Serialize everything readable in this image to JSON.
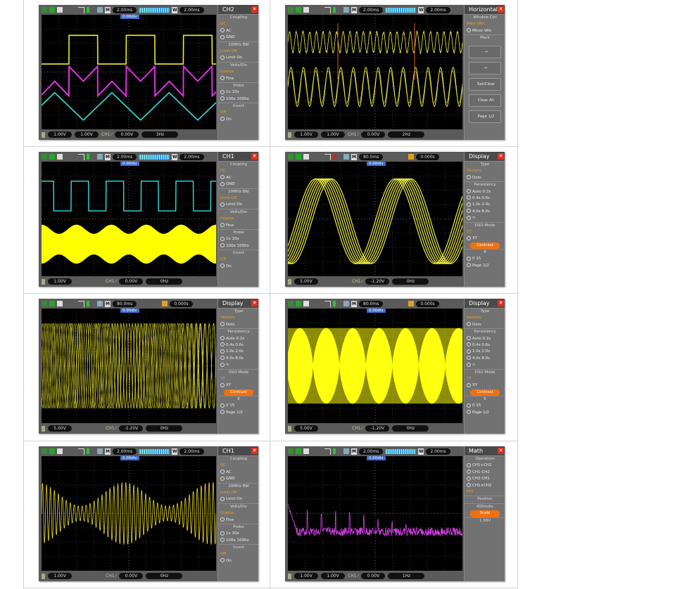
{
  "panels": [
    {
      "menu_title": "CH2",
      "top": {
        "main": "2.00ms",
        "window": "2.00ms",
        "mode": "W"
      },
      "trigger_tag": "0.00div",
      "bottom": [
        "1.00V",
        "1.00V",
        "0.00V",
        "3Hz"
      ],
      "traces": [
        {
          "kind": "square",
          "color": "#f0f020"
        },
        {
          "kind": "trapezoid",
          "color": "#e030e0"
        },
        {
          "kind": "triangle",
          "color": "#30e0e0"
        }
      ],
      "menu": [
        {
          "t": "Coupling",
          "k": "head"
        },
        {
          "t": "DC",
          "k": "sel"
        },
        {
          "t": "AC",
          "k": "opt"
        },
        {
          "t": "GND",
          "k": "opt"
        },
        {
          "t": "20MHz BW",
          "k": "head"
        },
        {
          "t": "Limit Off",
          "k": "sel"
        },
        {
          "t": "Limit On",
          "k": "opt"
        },
        {
          "t": "Volts/Div",
          "k": "head"
        },
        {
          "t": "Coarse",
          "k": "sel"
        },
        {
          "t": "Fine",
          "k": "opt"
        },
        {
          "t": "Probe",
          "k": "head"
        },
        {
          "t": "1x   10x",
          "k": "opt"
        },
        {
          "t": "100x 1000x",
          "k": "opt"
        },
        {
          "t": "Invert",
          "k": "head"
        },
        {
          "t": "Off",
          "k": "sel"
        },
        {
          "t": "On",
          "k": "opt"
        }
      ]
    },
    {
      "menu_title": "Horizontal",
      "top": {
        "main": "2.00ms",
        "window": "2.00ms",
        "mode": "W"
      },
      "trigger_tag": "",
      "bottom": [
        "1.00V",
        "1.00V",
        "0.00V",
        "2Hz"
      ],
      "traces": [
        {
          "kind": "sine-fast",
          "color": "#e8e840"
        },
        {
          "kind": "sine",
          "color": "#e8e840"
        }
      ],
      "menu": [
        {
          "t": "Window Ctrl",
          "k": "head"
        },
        {
          "t": "Main Win",
          "k": "sel"
        },
        {
          "t": "Minor Win",
          "k": "opt"
        },
        {
          "t": "Mark",
          "k": "head"
        },
        {
          "t": "→",
          "k": "btn"
        },
        {
          "t": "←",
          "k": "btn"
        },
        {
          "t": "Set/Clear",
          "k": "btn"
        },
        {
          "t": "Clear All",
          "k": "btn"
        },
        {
          "t": "Page 1/2",
          "k": "btn"
        }
      ]
    },
    {
      "menu_title": "CH1",
      "top": {
        "main": "2.00ms",
        "window": "2.00ms",
        "mode": "W"
      },
      "trigger_tag": "0.00div",
      "bottom": [
        "1.00V",
        "",
        "0.00V",
        "0Hz"
      ],
      "traces": [
        {
          "kind": "square",
          "color": "#30e0e0"
        },
        {
          "kind": "am-band",
          "color": "#ffff00"
        }
      ],
      "menu": [
        {
          "t": "Coupling",
          "k": "head"
        },
        {
          "t": "DC",
          "k": "sel"
        },
        {
          "t": "AC",
          "k": "opt"
        },
        {
          "t": "GND",
          "k": "opt"
        },
        {
          "t": "20MHz BW",
          "k": "head"
        },
        {
          "t": "Limit Off",
          "k": "sel"
        },
        {
          "t": "Limit On",
          "k": "opt"
        },
        {
          "t": "Volts/Div",
          "k": "head"
        },
        {
          "t": "Coarse",
          "k": "sel"
        },
        {
          "t": "Fine",
          "k": "opt"
        },
        {
          "t": "Probe",
          "k": "head"
        },
        {
          "t": "1x   10x",
          "k": "opt"
        },
        {
          "t": "100x 1000x",
          "k": "opt"
        },
        {
          "t": "Invert",
          "k": "head"
        },
        {
          "t": "Off",
          "k": "sel"
        },
        {
          "t": "On",
          "k": "opt"
        }
      ]
    },
    {
      "menu_title": "Display",
      "top": {
        "main": "80.0ms",
        "window": "0.000s",
        "mode": "T"
      },
      "trigger_tag": "0.00div",
      "bottom": [
        "5.00V",
        "",
        "-1.20V",
        "0Hz"
      ],
      "traces": [
        {
          "kind": "persistence-sine",
          "color": "#f0f040"
        }
      ],
      "menu": [
        {
          "t": "Type",
          "k": "head"
        },
        {
          "t": "Vectors",
          "k": "sel"
        },
        {
          "t": "Dots",
          "k": "opt"
        },
        {
          "t": "Persistency",
          "k": "head"
        },
        {
          "t": "Auto  0.2s",
          "k": "opt"
        },
        {
          "t": "0.4s  0.6s",
          "k": "opt"
        },
        {
          "t": "1.0s  2.0s",
          "k": "opt"
        },
        {
          "t": "4.0s  8.0s",
          "k": "opt"
        },
        {
          "t": "∞",
          "k": "opt"
        },
        {
          "t": "DSO Mode",
          "k": "head"
        },
        {
          "t": "YT",
          "k": "sel"
        },
        {
          "t": "XY",
          "k": "opt"
        },
        {
          "t": "Contrast",
          "k": "hl"
        },
        {
          "t": "8",
          "k": "head"
        },
        {
          "t": "0          15",
          "k": "opt"
        },
        {
          "t": "Page 1/2",
          "k": "opt"
        }
      ]
    },
    {
      "menu_title": "Display",
      "top": {
        "main": "80.0ms",
        "window": "0.000s",
        "mode": "T"
      },
      "trigger_tag": "0.00div",
      "bottom": [
        "5.00V",
        "",
        "-1.20V",
        "0Hz"
      ],
      "traces": [
        {
          "kind": "dense-sine",
          "color": "#d8d030"
        }
      ],
      "menu": [
        {
          "t": "Type",
          "k": "head"
        },
        {
          "t": "Vectors",
          "k": "sel"
        },
        {
          "t": "Dots",
          "k": "opt"
        },
        {
          "t": "Persistency",
          "k": "head"
        },
        {
          "t": "Auto  0.2s",
          "k": "opt"
        },
        {
          "t": "0.4s  0.6s",
          "k": "opt"
        },
        {
          "t": "1.0s  2.0s",
          "k": "opt"
        },
        {
          "t": "4.0s  8.0s",
          "k": "opt"
        },
        {
          "t": "∞",
          "k": "opt"
        },
        {
          "t": "DSO Mode",
          "k": "head"
        },
        {
          "t": "YT",
          "k": "sel"
        },
        {
          "t": "XY",
          "k": "opt"
        },
        {
          "t": "Contrast",
          "k": "hl"
        },
        {
          "t": "8",
          "k": "head"
        },
        {
          "t": "0          15",
          "k": "opt"
        },
        {
          "t": "Page 1/2",
          "k": "opt"
        }
      ]
    },
    {
      "menu_title": "Display",
      "top": {
        "main": "80.0ms",
        "window": "0.000s",
        "mode": "T"
      },
      "trigger_tag": "0.00div",
      "bottom": [
        "5.00V",
        "",
        "-1.20V",
        "0Hz"
      ],
      "traces": [
        {
          "kind": "am-lobes",
          "color": "#ffff10"
        }
      ],
      "menu": [
        {
          "t": "Type",
          "k": "head"
        },
        {
          "t": "Vectors",
          "k": "sel"
        },
        {
          "t": "Dots",
          "k": "opt"
        },
        {
          "t": "Persistency",
          "k": "head"
        },
        {
          "t": "Auto  0.2s",
          "k": "opt"
        },
        {
          "t": "0.4s  0.6s",
          "k": "opt"
        },
        {
          "t": "1.0s  2.0s",
          "k": "opt"
        },
        {
          "t": "4.0s  8.0s",
          "k": "opt"
        },
        {
          "t": "∞",
          "k": "opt"
        },
        {
          "t": "DSO Mode",
          "k": "head"
        },
        {
          "t": "YT",
          "k": "sel"
        },
        {
          "t": "XY",
          "k": "opt"
        },
        {
          "t": "Contrast",
          "k": "hl"
        },
        {
          "t": "8",
          "k": "head"
        },
        {
          "t": "0          15",
          "k": "opt"
        },
        {
          "t": "Page 1/2",
          "k": "opt"
        }
      ]
    },
    {
      "menu_title": "CH1",
      "top": {
        "main": "2.00ms",
        "window": "2.00ms",
        "mode": "W"
      },
      "trigger_tag": "0.00div",
      "bottom": [
        "1.00V",
        "",
        "0.00V",
        "0Hz"
      ],
      "traces": [
        {
          "kind": "am-sine",
          "color": "#f0e020"
        }
      ],
      "menu": [
        {
          "t": "Coupling",
          "k": "head"
        },
        {
          "t": "DC",
          "k": "sel"
        },
        {
          "t": "AC",
          "k": "opt"
        },
        {
          "t": "GND",
          "k": "opt"
        },
        {
          "t": "20MHz BW",
          "k": "head"
        },
        {
          "t": "Limit Off",
          "k": "sel"
        },
        {
          "t": "Limit On",
          "k": "opt"
        },
        {
          "t": "Volts/Div",
          "k": "head"
        },
        {
          "t": "Coarse",
          "k": "sel"
        },
        {
          "t": "Fine",
          "k": "opt"
        },
        {
          "t": "Probe",
          "k": "head"
        },
        {
          "t": "1x   10x",
          "k": "opt"
        },
        {
          "t": "100x 1000x",
          "k": "opt"
        },
        {
          "t": "Invert",
          "k": "head"
        },
        {
          "t": "Off",
          "k": "sel"
        },
        {
          "t": "On",
          "k": "opt"
        }
      ]
    },
    {
      "menu_title": "Math",
      "top": {
        "main": "2.00ms",
        "window": "2.00ms",
        "mode": "W"
      },
      "trigger_tag": "0.00div",
      "bottom": [
        "1.00V",
        "1.00V",
        "0.00V",
        "1Hz"
      ],
      "traces": [
        {
          "kind": "fft",
          "color": "#d040e0"
        }
      ],
      "menu": [
        {
          "t": "Operation",
          "k": "head"
        },
        {
          "t": "CH1+CH2",
          "k": "opt"
        },
        {
          "t": "CH1-CH2",
          "k": "opt"
        },
        {
          "t": "CH2-CH1",
          "k": "opt"
        },
        {
          "t": "CH1×CH2",
          "k": "opt"
        },
        {
          "t": "FFT",
          "k": "sel"
        },
        {
          "t": "Position",
          "k": "head"
        },
        {
          "t": "400mdiv",
          "k": "head"
        },
        {
          "t": "Scale",
          "k": "hl"
        },
        {
          "t": "1.00V",
          "k": "head"
        }
      ]
    }
  ]
}
